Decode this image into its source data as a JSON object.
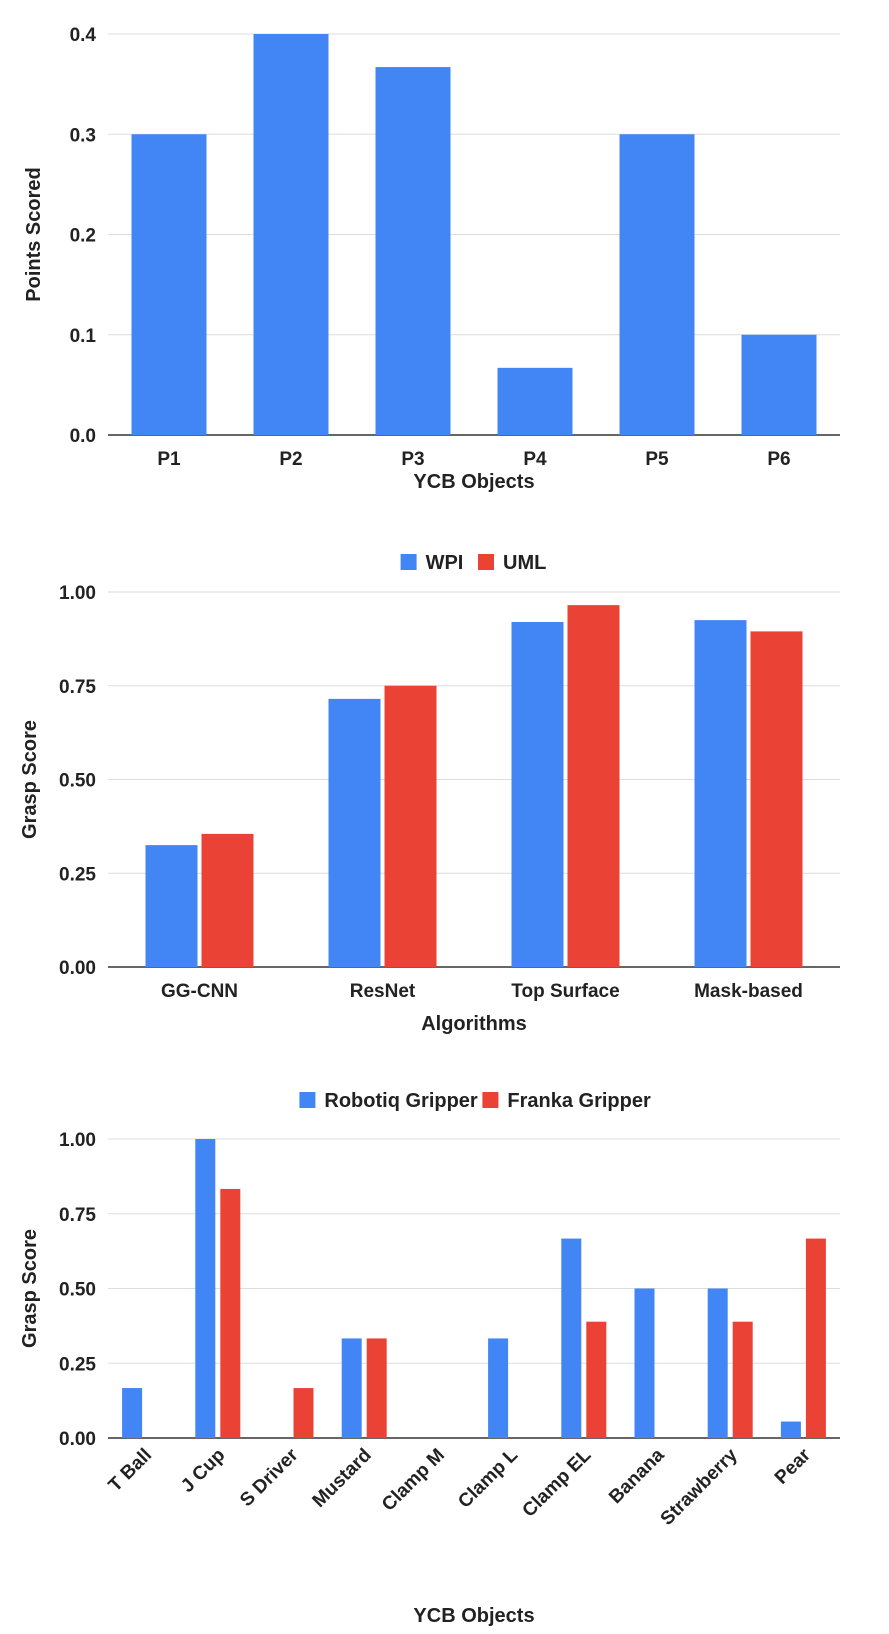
{
  "colors": {
    "blue": "#4285f4",
    "red": "#ea4335"
  },
  "chart_data": [
    {
      "type": "bar",
      "title": "",
      "categories": [
        "P1",
        "P2",
        "P3",
        "P4",
        "P5",
        "P6"
      ],
      "series": [
        {
          "name": "",
          "values": [
            0.3,
            0.4,
            0.367,
            0.067,
            0.3,
            0.1
          ]
        }
      ],
      "xlabel": "YCB Objects",
      "ylabel": "Points Scored",
      "ylim": [
        0,
        0.4
      ],
      "yticks": [
        "0.0",
        "0.1",
        "0.2",
        "0.3",
        "0.4"
      ],
      "legend": "none",
      "grid": true
    },
    {
      "type": "bar",
      "title": "",
      "categories": [
        "GG-CNN",
        "ResNet",
        "Top Surface",
        "Mask-based"
      ],
      "series": [
        {
          "name": "WPI",
          "values": [
            0.325,
            0.715,
            0.92,
            0.925
          ]
        },
        {
          "name": "UML",
          "values": [
            0.355,
            0.75,
            0.965,
            0.895
          ]
        }
      ],
      "xlabel": "Algorithms",
      "ylabel": "Grasp Score",
      "ylim": [
        0,
        1
      ],
      "yticks": [
        "0.00",
        "0.25",
        "0.50",
        "0.75",
        "1.00"
      ],
      "legend": "top-center",
      "grid": true
    },
    {
      "type": "bar",
      "title": "",
      "categories": [
        "T Ball",
        "J Cup",
        "S Driver",
        "Mustard",
        "Clamp M",
        "Clamp L",
        "Clamp EL",
        "Banana",
        "Strawberry",
        "Pear"
      ],
      "series": [
        {
          "name": "Robotiq Gripper",
          "values": [
            0.167,
            1.0,
            0,
            0.333,
            0,
            0.333,
            0.667,
            0.5,
            0.5,
            0.055
          ]
        },
        {
          "name": "Franka Gripper",
          "values": [
            0,
            0.833,
            0.167,
            0.333,
            0,
            0,
            0.389,
            0,
            0.389,
            0.667
          ]
        }
      ],
      "xlabel": "YCB Objects",
      "ylabel": "Grasp Score",
      "ylim": [
        0,
        1
      ],
      "yticks": [
        "0.00",
        "0.25",
        "0.50",
        "0.75",
        "1.00"
      ],
      "legend": "top-center",
      "grid": true
    }
  ]
}
